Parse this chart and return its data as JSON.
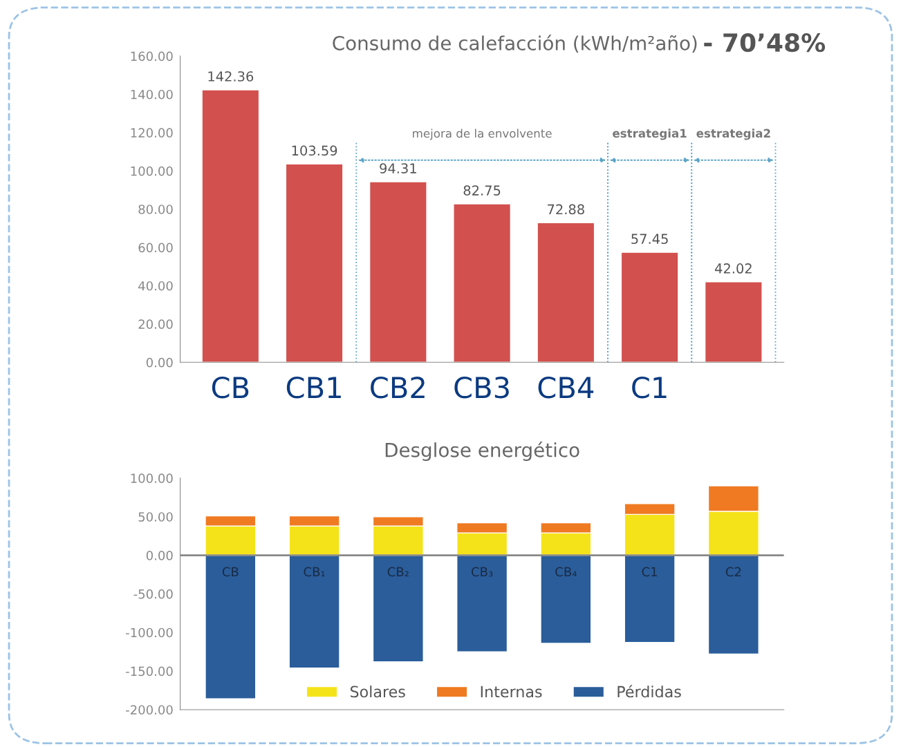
{
  "chart_data": [
    {
      "type": "bar",
      "title": "Consumo de calefacción (kWh/m²año)",
      "subtitle": "- 70’48%",
      "categories": [
        "CB",
        "CB1",
        "CB2",
        "CB3",
        "CB4",
        "C1",
        null
      ],
      "values": [
        142.36,
        103.59,
        94.31,
        82.75,
        72.88,
        57.45,
        42.02
      ],
      "color": "#d2504e",
      "ylim": [
        0,
        160
      ],
      "yticks": [
        {
          "value": 0,
          "label": "0.00"
        },
        {
          "value": 20,
          "label": "20.00"
        },
        {
          "value": 40,
          "label": "40.00"
        },
        {
          "value": 60,
          "label": "60.00"
        },
        {
          "value": 80,
          "label": "80.00"
        },
        {
          "value": 100,
          "label": "100.00"
        },
        {
          "value": 120,
          "label": "120.00"
        },
        {
          "value": 140,
          "label": "140.00"
        },
        {
          "value": 160,
          "label": "160.00"
        }
      ],
      "data_labels": true,
      "grid": false,
      "annotations": [
        "mejora de la envolvente",
        "estrategia1",
        "estrategia2"
      ]
    },
    {
      "type": "bar",
      "title": "Desglose energético",
      "stacked": true,
      "categories": [
        "CB",
        "CB₁",
        "CB₂",
        "CB₃",
        "CB₄",
        "C1",
        "C2"
      ],
      "series": [
        {
          "name": "Solares",
          "color": "#f5e31a",
          "values": [
            38,
            38,
            38,
            29,
            29,
            53,
            57
          ]
        },
        {
          "name": "Internas",
          "color": "#ef7a22",
          "values": [
            13,
            13,
            12,
            13,
            13,
            14,
            33
          ]
        },
        {
          "name": "Pérdidas",
          "color": "#2a5d9a",
          "values": [
            -186,
            -146,
            -138,
            -125,
            -114,
            -113,
            -128
          ]
        }
      ],
      "ylim": [
        -200,
        100
      ],
      "yticks": [
        {
          "value": -200,
          "label": "-200.00"
        },
        {
          "value": -150,
          "label": "-150.00"
        },
        {
          "value": -100,
          "label": "-100.00"
        },
        {
          "value": -50,
          "label": "-50.00"
        },
        {
          "value": 0,
          "label": "0.00"
        },
        {
          "value": 50,
          "label": "50.00"
        },
        {
          "value": 100,
          "label": "100.00"
        }
      ],
      "legend": "bottom",
      "grid": false
    }
  ]
}
